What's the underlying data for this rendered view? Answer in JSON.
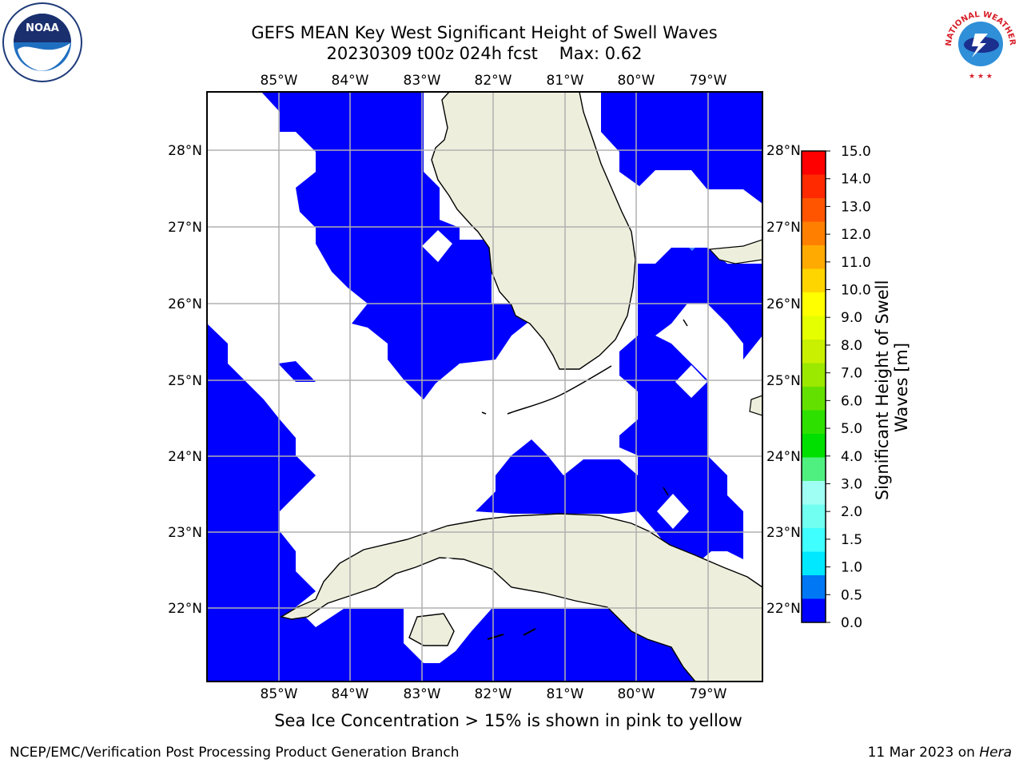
{
  "title_line1": "GEFS MEAN Key West Significant Height of Swell Waves",
  "title_line2": "20230309 t00z 024h fcst",
  "max_label": "Max: 0.62",
  "longitude_labels": [
    "85°W",
    "84°W",
    "83°W",
    "82°W",
    "81°W",
    "80°W",
    "79°W"
  ],
  "latitude_labels": [
    "28°N",
    "27°N",
    "26°N",
    "25°N",
    "24°N",
    "23°N",
    "22°N"
  ],
  "colorbar": {
    "title": "Significant Height of Swell Waves [m]",
    "ticks": [
      "15.0",
      "14.0",
      "13.0",
      "12.0",
      "11.0",
      "10.0",
      "9.0",
      "8.0",
      "7.0",
      "6.0",
      "5.0",
      "4.0",
      "3.0",
      "2.0",
      "1.5",
      "1.0",
      "0.5",
      "0.0"
    ],
    "colors": [
      "#ff0000",
      "#ff2a00",
      "#ff5500",
      "#ff8000",
      "#ffaa00",
      "#ffd500",
      "#ffff00",
      "#e6ff00",
      "#c8f000",
      "#9be800",
      "#64e000",
      "#2ee000",
      "#00e000",
      "#50f080",
      "#a0fff5",
      "#70fff0",
      "#40ffff",
      "#00e8ff",
      "#0078f5",
      "#0000ff"
    ]
  },
  "map_colors": {
    "water_low": "#0000ff",
    "land": "#eeeedd",
    "no_data": "#ffffff",
    "grid": "#b0b0b0"
  },
  "subtitle": "Sea Ice Concentration > 15% is shown in pink to yellow",
  "footer_left": "NCEP/EMC/Verification Post Processing Product Generation Branch",
  "footer_date": "11 Mar 2023 on",
  "footer_machine": "Hera",
  "logos": {
    "left": "NOAA",
    "right": "NATIONAL WEATHER SERVICE"
  }
}
